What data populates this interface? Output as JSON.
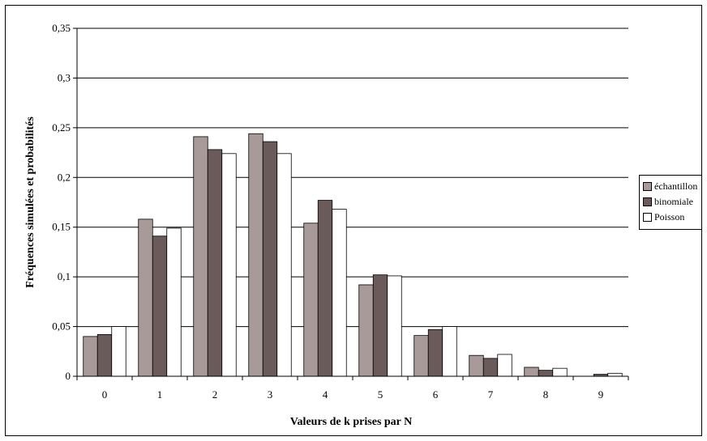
{
  "chart_data": {
    "type": "bar",
    "xlabel": "Valeurs de k prises par N",
    "ylabel": "Fréquences simulées et probabilités",
    "ylim": [
      0,
      0.35
    ],
    "yticks": [
      "0",
      "0,05",
      "0,1",
      "0,15",
      "0,2",
      "0,25",
      "0,3",
      "0,35"
    ],
    "yticks_values": [
      0,
      0.05,
      0.1,
      0.15,
      0.2,
      0.25,
      0.3,
      0.35
    ],
    "categories": [
      "0",
      "1",
      "2",
      "3",
      "4",
      "5",
      "6",
      "7",
      "8",
      "9"
    ],
    "grid": true,
    "legend_position": "right",
    "series": [
      {
        "name": "échantillon",
        "color": "#a89a98",
        "values": [
          0.04,
          0.158,
          0.241,
          0.244,
          0.154,
          0.092,
          0.041,
          0.021,
          0.009,
          0.0
        ]
      },
      {
        "name": "binomiale",
        "color": "#6b5a5a",
        "values": [
          0.042,
          0.141,
          0.228,
          0.236,
          0.177,
          0.102,
          0.047,
          0.018,
          0.006,
          0.002
        ]
      },
      {
        "name": "Poisson",
        "color": "#ffffff",
        "values": [
          0.05,
          0.149,
          0.224,
          0.224,
          0.168,
          0.101,
          0.05,
          0.022,
          0.008,
          0.003
        ]
      }
    ]
  }
}
